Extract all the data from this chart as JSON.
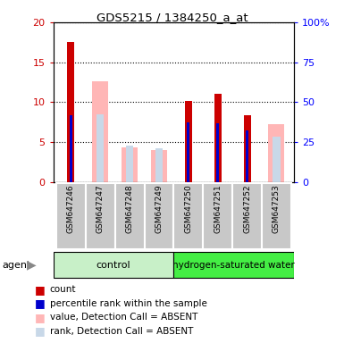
{
  "title": "GDS5215 / 1384250_a_at",
  "samples": [
    "GSM647246",
    "GSM647247",
    "GSM647248",
    "GSM647249",
    "GSM647250",
    "GSM647251",
    "GSM647252",
    "GSM647253"
  ],
  "count_values": [
    17.5,
    0,
    0,
    0,
    10.1,
    11.0,
    8.3,
    0
  ],
  "rank_values": [
    8.3,
    0,
    0,
    0,
    7.5,
    7.3,
    6.4,
    0
  ],
  "absent_value_values": [
    0,
    12.6,
    4.3,
    4.0,
    0,
    0,
    0,
    7.2
  ],
  "absent_rank_values": [
    0,
    8.5,
    4.5,
    4.2,
    0,
    0,
    0,
    5.7
  ],
  "left_ylim": [
    0,
    20
  ],
  "right_ylim": [
    0,
    100
  ],
  "left_yticks": [
    0,
    5,
    10,
    15,
    20
  ],
  "right_yticks": [
    0,
    25,
    50,
    75,
    100
  ],
  "left_yticklabels": [
    "0",
    "5",
    "10",
    "15",
    "20"
  ],
  "right_yticklabels": [
    "0",
    "25",
    "50",
    "75",
    "100%"
  ],
  "count_color": "#CC0000",
  "rank_color": "#0000CC",
  "absent_value_color": "#FFB6B6",
  "absent_rank_color": "#C8D8E8",
  "control_color": "#C8F0C8",
  "hydrogen_color": "#44EE44",
  "gray_bg": "#C8C8C8",
  "legend_labels": [
    "count",
    "percentile rank within the sample",
    "value, Detection Call = ABSENT",
    "rank, Detection Call = ABSENT"
  ],
  "legend_colors": [
    "#CC0000",
    "#0000CC",
    "#FFB6B6",
    "#C8D8E8"
  ]
}
